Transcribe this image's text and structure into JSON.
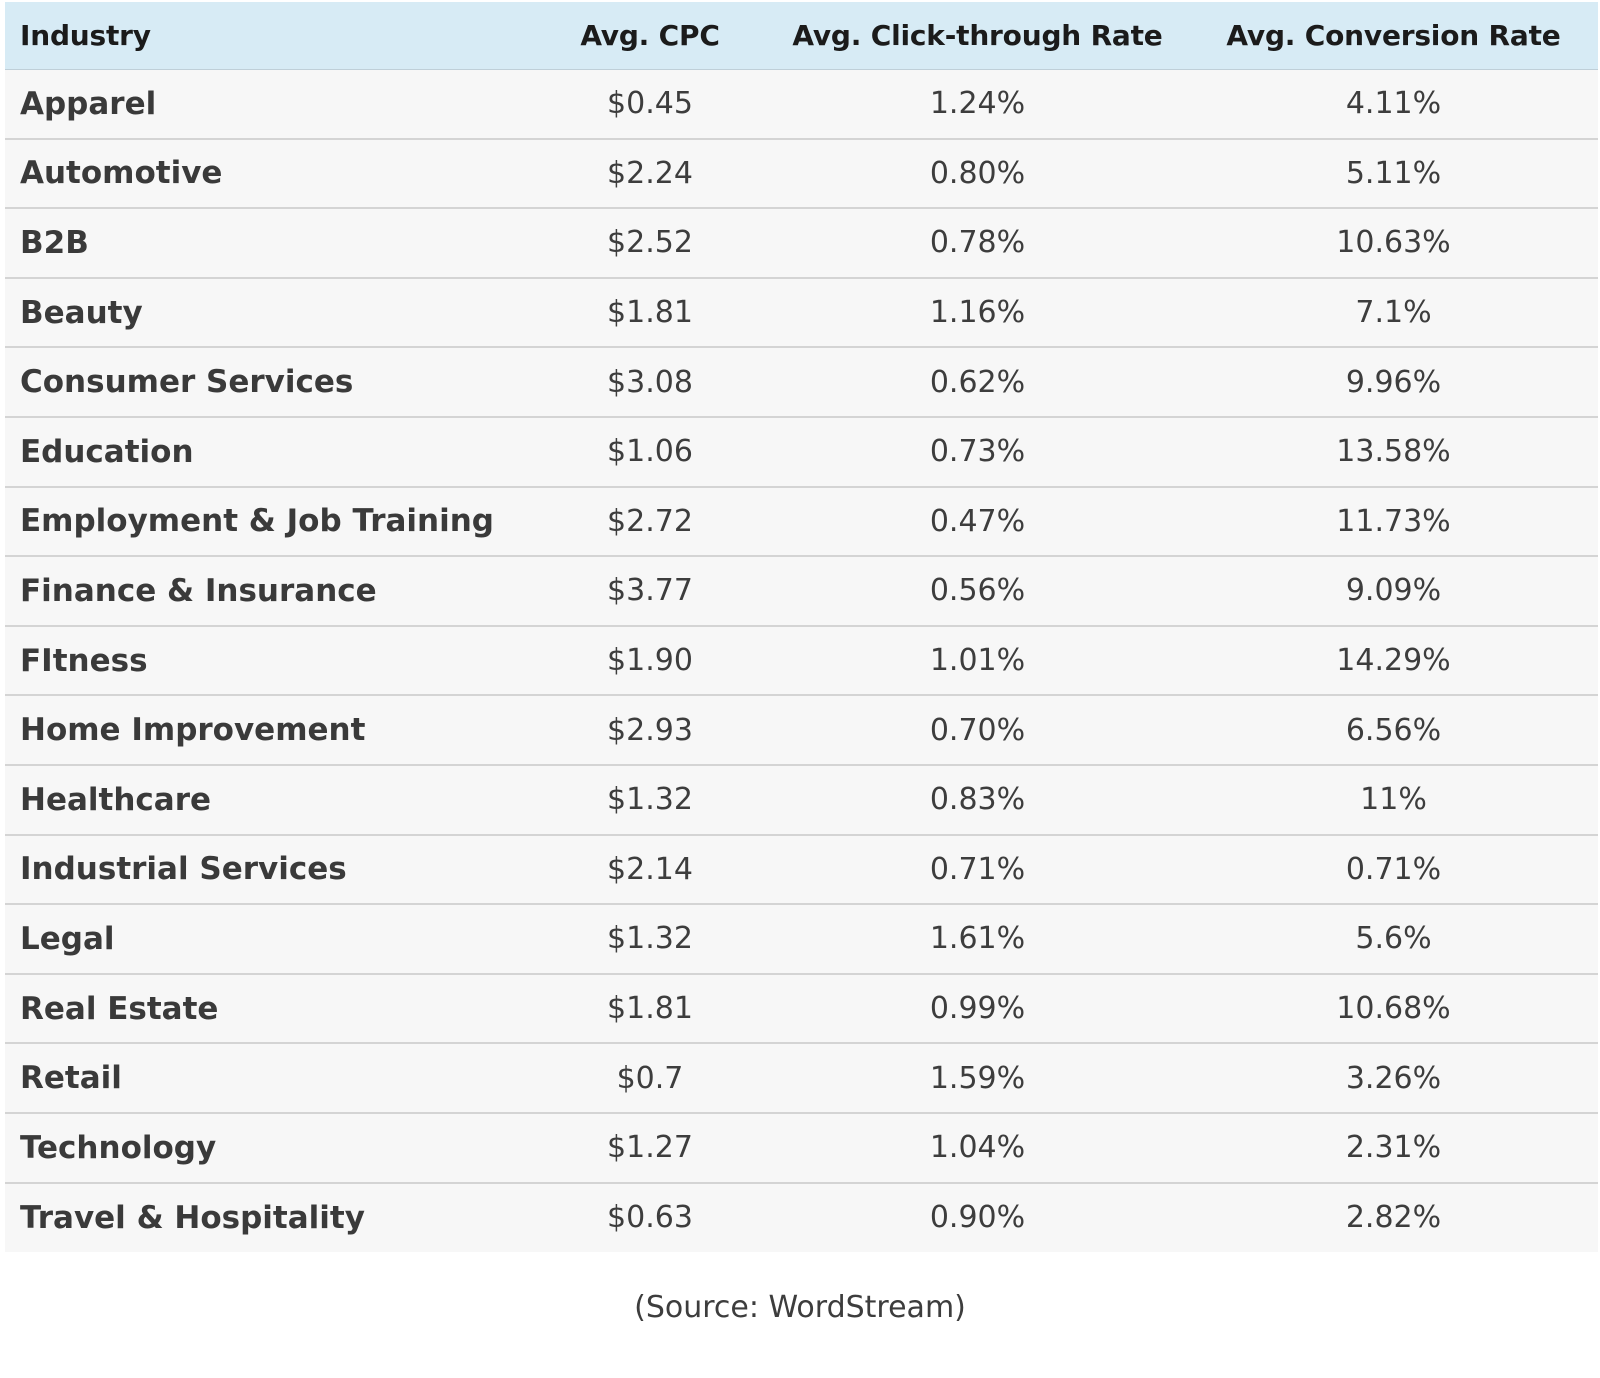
{
  "chart_data": {
    "type": "table",
    "columns": [
      "Industry",
      "Avg. CPC",
      "Avg. Click-through Rate",
      "Avg. Conversion Rate"
    ],
    "rows": [
      [
        "Apparel",
        "$0.45",
        "1.24%",
        "4.11%"
      ],
      [
        "Automotive",
        "$2.24",
        "0.80%",
        "5.11%"
      ],
      [
        "B2B",
        "$2.52",
        "0.78%",
        "10.63%"
      ],
      [
        "Beauty",
        "$1.81",
        "1.16%",
        "7.1%"
      ],
      [
        "Consumer Services",
        "$3.08",
        "0.62%",
        "9.96%"
      ],
      [
        "Education",
        "$1.06",
        "0.73%",
        "13.58%"
      ],
      [
        "Employment & Job Training",
        "$2.72",
        "0.47%",
        "11.73%"
      ],
      [
        "Finance & Insurance",
        "$3.77",
        "0.56%",
        "9.09%"
      ],
      [
        "FItness",
        "$1.90",
        "1.01%",
        "14.29%"
      ],
      [
        "Home Improvement",
        "$2.93",
        "0.70%",
        "6.56%"
      ],
      [
        "Healthcare",
        "$1.32",
        "0.83%",
        "11%"
      ],
      [
        "Industrial Services",
        "$2.14",
        "0.71%",
        "0.71%"
      ],
      [
        "Legal",
        "$1.32",
        "1.61%",
        "5.6%"
      ],
      [
        "Real Estate",
        "$1.81",
        "0.99%",
        "10.68%"
      ],
      [
        "Retail",
        "$0.7",
        "1.59%",
        "3.26%"
      ],
      [
        "Technology",
        "$1.27",
        "1.04%",
        "2.31%"
      ],
      [
        "Travel & Hospitality",
        "$0.63",
        "0.90%",
        "2.82%"
      ]
    ],
    "source": "(Source: WordStream)"
  },
  "colors": {
    "header_bg": "#d7ebf5",
    "row_bg": "#f7f7f7",
    "row_divider": "#d4d4d4",
    "text": "#3d3d3d",
    "header_text": "#1b1b1b"
  }
}
